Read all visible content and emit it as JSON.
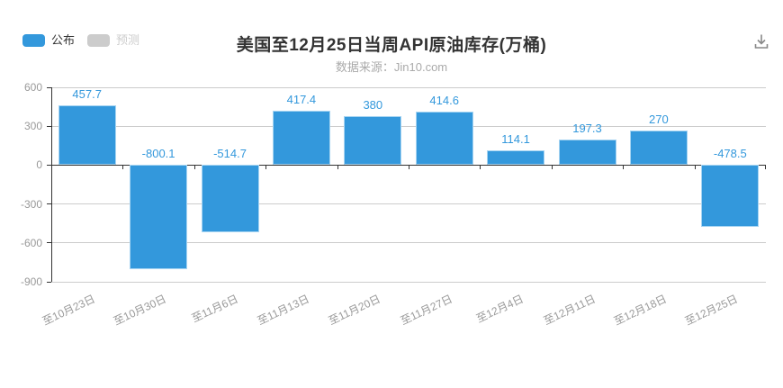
{
  "legend": {
    "items": [
      {
        "key": "published",
        "label": "公布",
        "swatch_color": "#3398dc",
        "label_color": "#333333"
      },
      {
        "key": "forecast",
        "label": "预测",
        "swatch_color": "#cccccc",
        "label_color": "#cccccc"
      }
    ]
  },
  "toolbar": {
    "download_icon": "download-icon",
    "icon_color": "#888888"
  },
  "chart_data": {
    "type": "bar",
    "title": "美国至12月25日当周API原油库存(万桶)",
    "subtitle": "数据来源：Jin10.com",
    "categories": [
      "至10月23日",
      "至10月30日",
      "至11月6日",
      "至11月13日",
      "至11月20日",
      "至11月27日",
      "至12月4日",
      "至12月11日",
      "至12月18日",
      "至12月25日"
    ],
    "series": [
      {
        "name": "公布",
        "color": "#3398dc",
        "values": [
          457.7,
          -800.1,
          -514.7,
          417.4,
          380,
          414.6,
          114.1,
          197.3,
          270,
          -478.5
        ]
      },
      {
        "name": "预测",
        "color": "#cccccc",
        "values": []
      }
    ],
    "ylim": [
      -900,
      600
    ],
    "y_ticks": [
      600,
      300,
      0,
      -300,
      -600,
      -900
    ],
    "grid": true,
    "legend_position": "top-left",
    "x_label_rotation": -25,
    "value_label_color": "#3398dc",
    "axis_label_color": "#999999",
    "axis_line_color": "#333333",
    "grid_color": "#cccccc",
    "bar_border_color": "#a6d4f2",
    "background_color": "#ffffff"
  }
}
